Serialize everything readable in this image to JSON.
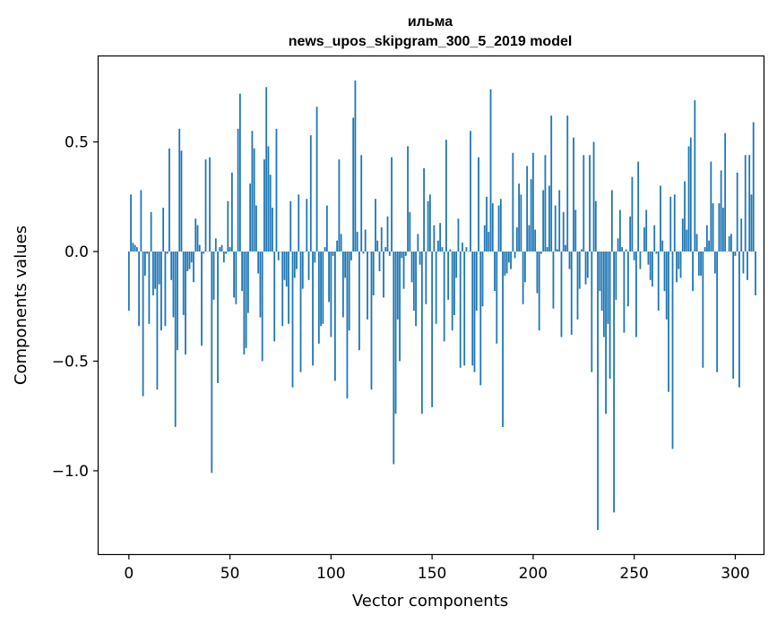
{
  "chart_data": {
    "type": "bar",
    "title_line1": "ильма",
    "title_line2": "news_upos_skipgram_300_5_2019 model",
    "xlabel": "Vector components",
    "ylabel": "Components values",
    "xlim": [
      -15,
      314
    ],
    "ylim": [
      -1.38,
      0.89
    ],
    "xticks": [
      0,
      50,
      100,
      150,
      200,
      250,
      300
    ],
    "xtick_labels": [
      "0",
      "50",
      "100",
      "150",
      "200",
      "250",
      "300"
    ],
    "yticks": [
      -1.0,
      -0.5,
      0.0,
      0.5
    ],
    "ytick_labels": [
      "−1.0",
      "−0.5",
      "0.0",
      "0.5"
    ],
    "bar_color": "#1f77b4",
    "values": [
      -0.27,
      0.26,
      0.04,
      0.03,
      0.02,
      -0.34,
      0.28,
      -0.66,
      -0.11,
      -0.01,
      -0.33,
      0.18,
      -0.2,
      -0.17,
      -0.63,
      -0.15,
      -0.36,
      0.2,
      -0.34,
      -0.01,
      0.47,
      -0.13,
      -0.3,
      -0.8,
      -0.45,
      0.56,
      0.46,
      -0.29,
      -0.47,
      -0.09,
      -0.08,
      -0.05,
      -0.14,
      0.15,
      0.12,
      0.03,
      -0.43,
      -0.01,
      0.42,
      0.0,
      0.43,
      -1.01,
      -0.22,
      0.06,
      -0.6,
      0.02,
      0.03,
      -0.05,
      -0.01,
      0.23,
      0.02,
      0.36,
      -0.21,
      -0.24,
      0.56,
      0.72,
      -0.18,
      -0.47,
      -0.44,
      -0.28,
      0.31,
      0.55,
      0.47,
      0.21,
      -0.1,
      -0.3,
      -0.5,
      0.42,
      0.75,
      0.48,
      0.35,
      0.2,
      -0.41,
      0.56,
      -0.04,
      0.0,
      -0.34,
      -0.13,
      -0.16,
      -0.33,
      0.23,
      -0.62,
      -0.12,
      -0.08,
      0.26,
      -0.55,
      -0.17,
      0.0,
      0.24,
      -0.13,
      0.53,
      -0.52,
      -0.05,
      0.66,
      -0.42,
      -0.34,
      -0.33,
      0.02,
      0.21,
      -0.23,
      -0.39,
      -0.02,
      -0.59,
      0.05,
      0.42,
      0.08,
      -0.3,
      -0.12,
      -0.67,
      -0.36,
      -0.04,
      0.61,
      0.78,
      0.09,
      -0.45,
      0.44,
      -0.01,
      0.1,
      -0.31,
      0.0,
      -0.63,
      -0.2,
      0.24,
      0.05,
      -0.09,
      0.11,
      -0.21,
      0.02,
      0.16,
      -0.02,
      0.43,
      -0.97,
      -0.74,
      -0.31,
      -0.5,
      -0.03,
      -0.17,
      -0.02,
      0.48,
      0.18,
      -0.14,
      -0.27,
      -0.34,
      0.08,
      -0.06,
      -0.74,
      0.38,
      -0.24,
      0.23,
      0.26,
      -0.71,
      0.12,
      -0.33,
      0.05,
      0.13,
      0.02,
      -0.41,
      0.51,
      -0.22,
      0.01,
      -0.36,
      -0.29,
      -0.12,
      0.15,
      -0.53,
      0.04,
      -0.52,
      0.02,
      0.0,
      0.55,
      -0.52,
      -0.55,
      -0.27,
      0.43,
      -0.61,
      -0.25,
      0.12,
      0.25,
      0.09,
      0.74,
      0.22,
      -0.18,
      -0.42,
      0.21,
      0.24,
      -0.8,
      -0.11,
      -0.1,
      -0.05,
      -0.08,
      0.45,
      -0.03,
      0.11,
      0.31,
      0.26,
      -0.24,
      -0.14,
      0.39,
      0.12,
      0.33,
      0.45,
      0.1,
      -0.19,
      -0.36,
      -0.01,
      0.28,
      0.44,
      0.02,
      0.3,
      0.62,
      -0.26,
      0.21,
      0.01,
      0.28,
      -0.39,
      0.18,
      0.03,
      0.62,
      -0.08,
      -0.38,
      0.52,
      0.19,
      -0.31,
      -0.17,
      0.01,
      0.44,
      -0.15,
      -0.12,
      0.44,
      -0.55,
      0.5,
      0.23,
      -1.27,
      -0.18,
      -0.27,
      -0.39,
      -0.74,
      -0.33,
      -0.58,
      0.28,
      -1.19,
      -0.22,
      0.06,
      0.19,
      0.02,
      -0.37,
      0.01,
      -0.25,
      0.16,
      0.34,
      -0.04,
      -0.39,
      0.41,
      -0.08,
      0.0,
      0.11,
      0.19,
      -0.06,
      -0.13,
      -0.16,
      0.12,
      -0.01,
      -0.27,
      0.3,
      0.05,
      -0.18,
      -0.31,
      -0.64,
      0.25,
      -0.9,
      0.26,
      -0.14,
      -0.08,
      -0.12,
      0.15,
      0.32,
      0.1,
      0.48,
      0.52,
      -0.18,
      0.69,
      0.08,
      -0.11,
      -0.11,
      -0.53,
      0.02,
      0.12,
      0.05,
      0.41,
      0.22,
      -0.1,
      -0.55,
      0.22,
      0.37,
      0.2,
      0.54,
      0.0,
      0.07,
      0.08,
      -0.58,
      -0.02,
      0.36,
      -0.62,
      0.15,
      -0.1,
      0.44,
      -0.13,
      0.44,
      0.26,
      0.59,
      -0.2
    ]
  }
}
